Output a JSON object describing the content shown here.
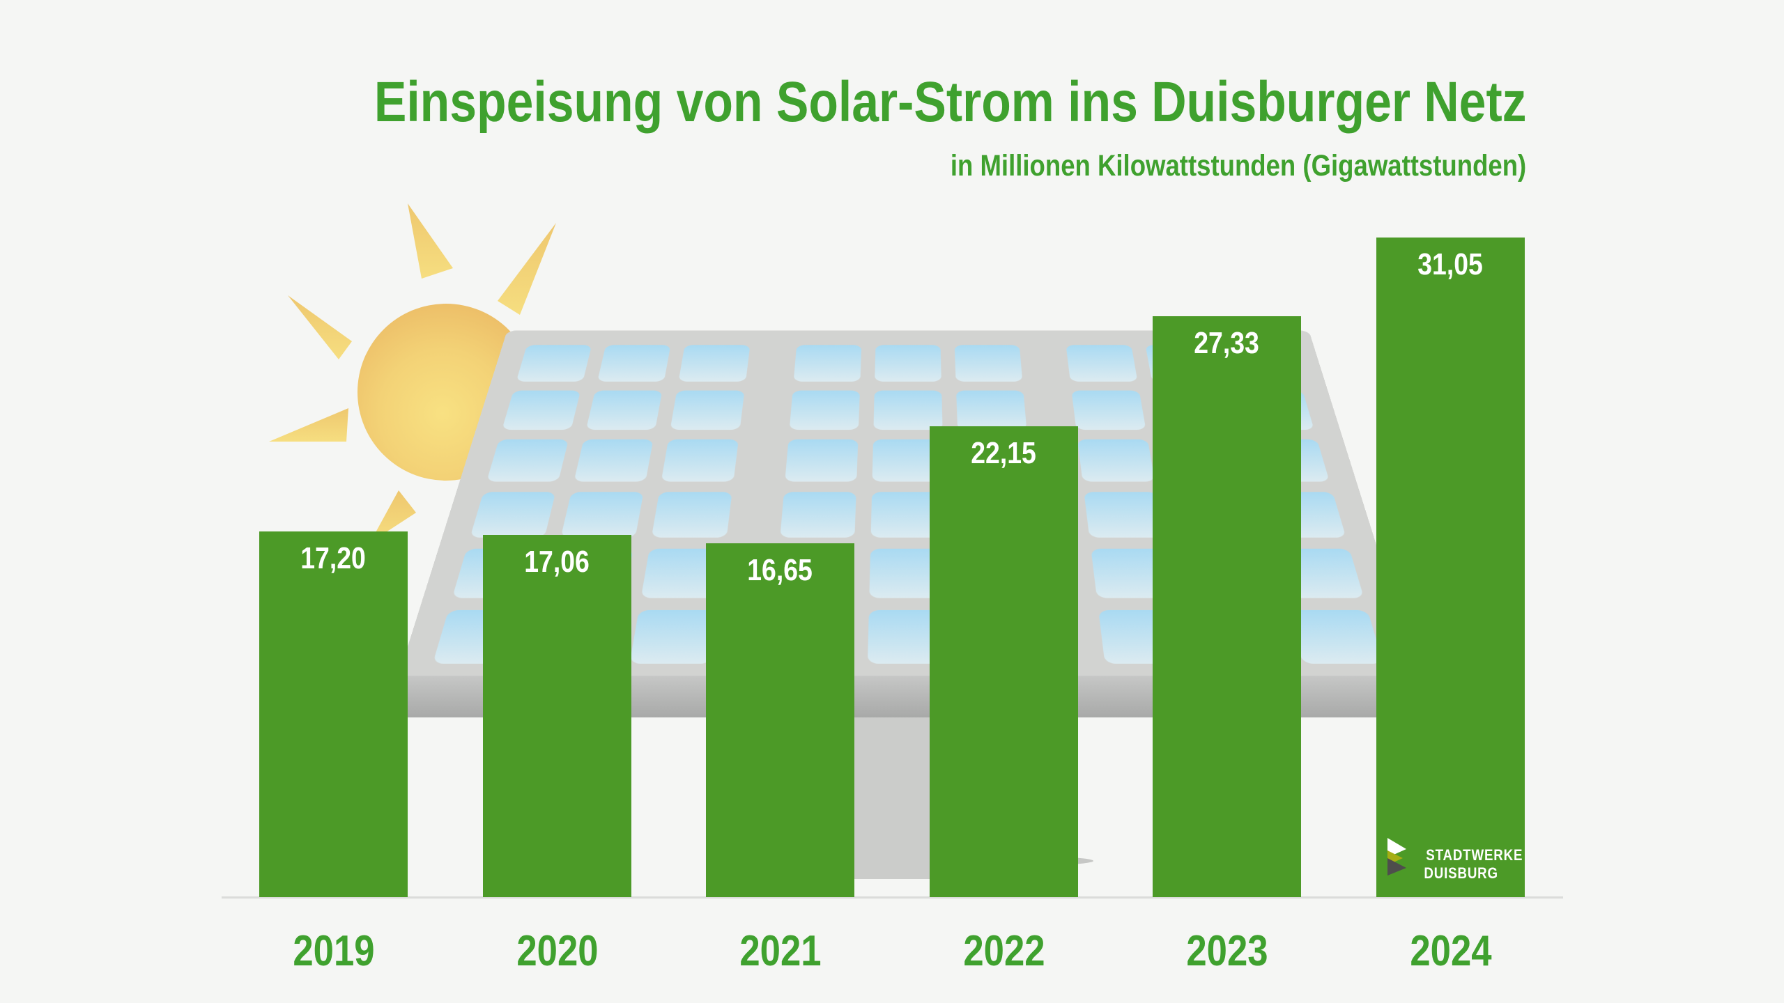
{
  "title": "Einspeisung von Solar-Strom ins Duisburger Netz",
  "subtitle": "in Millionen Kilowattstunden (Gigawattstunden)",
  "chart_data": {
    "type": "bar",
    "categories": [
      "2019",
      "2020",
      "2021",
      "2022",
      "2023",
      "2024"
    ],
    "values": [
      17.2,
      17.06,
      16.65,
      22.15,
      27.33,
      31.05
    ],
    "value_labels": [
      "17,20",
      "17,06",
      "16,65",
      "22,15",
      "27,33",
      "31,05"
    ],
    "title": "Einspeisung von Solar-Strom ins Duisburger Netz",
    "subtitle_unit": "in Millionen Kilowattstunden (Gigawattstunden)",
    "xlabel": "",
    "ylabel": "Millionen Kilowattstunden (GWh)",
    "ylim": [
      0,
      33
    ],
    "grid": false,
    "legend": "none",
    "decimal_separator": ","
  },
  "logo": {
    "line1": "STADTWERKE",
    "line2": "DUISBURG"
  },
  "icons": {
    "logo_mark": "stadtwerke-triangles-icon",
    "sun": "sun-icon",
    "solar_panel": "solar-panel-illustration"
  },
  "colors": {
    "background": "#F5F6F4",
    "bar_green": "#4C9A27",
    "text_green": "#3FA12E",
    "value_text_white": "#FFFFFF",
    "baseline_gray": "#DBDCDA",
    "panel_gray": "#D2D3D1",
    "panel_frame_gray": "#A8A9A8",
    "cell_blue_top": "#A9DAF2",
    "cell_blue_bottom": "#DCEBF1",
    "sun_core_yellow": "#F8E182",
    "sun_edge_orange": "#ECBD67",
    "ray_yellow": "#F3D67A",
    "logo_olive": "#A6AE15",
    "logo_dark_gray": "#4E4E4C"
  }
}
